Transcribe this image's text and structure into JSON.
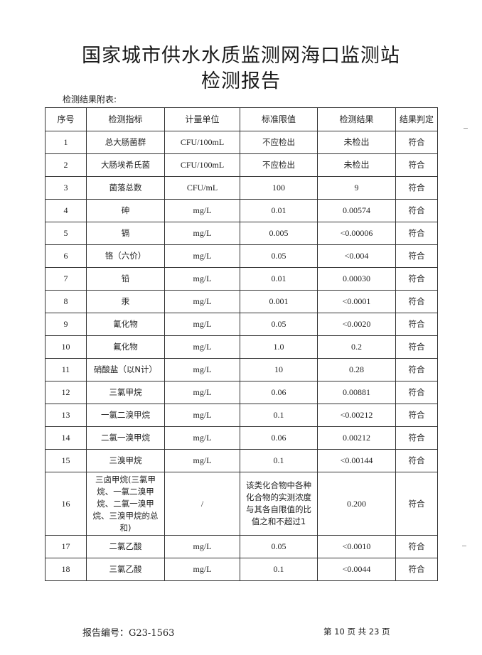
{
  "title_line1": "国家城市供水水质监测网海口监测站",
  "title_line2": "检测报告",
  "subtitle": "检测结果附表:",
  "table": {
    "headers": [
      "序号",
      "检测指标",
      "计量单位",
      "标准限值",
      "检测结果",
      "结果判定"
    ],
    "rows": [
      [
        "1",
        "总大肠菌群",
        "CFU/100mL",
        "不应检出",
        "未检出",
        "符合"
      ],
      [
        "2",
        "大肠埃希氏菌",
        "CFU/100mL",
        "不应检出",
        "未检出",
        "符合"
      ],
      [
        "3",
        "菌落总数",
        "CFU/mL",
        "100",
        "9",
        "符合"
      ],
      [
        "4",
        "砷",
        "mg/L",
        "0.01",
        "0.00574",
        "符合"
      ],
      [
        "5",
        "镉",
        "mg/L",
        "0.005",
        "<0.00006",
        "符合"
      ],
      [
        "6",
        "铬（六价）",
        "mg/L",
        "0.05",
        "<0.004",
        "符合"
      ],
      [
        "7",
        "铅",
        "mg/L",
        "0.01",
        "0.00030",
        "符合"
      ],
      [
        "8",
        "汞",
        "mg/L",
        "0.001",
        "<0.0001",
        "符合"
      ],
      [
        "9",
        "氰化物",
        "mg/L",
        "0.05",
        "<0.0020",
        "符合"
      ],
      [
        "10",
        "氟化物",
        "mg/L",
        "1.0",
        "0.2",
        "符合"
      ],
      [
        "11",
        "硝酸盐（以N计）",
        "mg/L",
        "10",
        "0.28",
        "符合"
      ],
      [
        "12",
        "三氯甲烷",
        "mg/L",
        "0.06",
        "0.00881",
        "符合"
      ],
      [
        "13",
        "一氯二溴甲烷",
        "mg/L",
        "0.1",
        "<0.00212",
        "符合"
      ],
      [
        "14",
        "二氯一溴甲烷",
        "mg/L",
        "0.06",
        "0.00212",
        "符合"
      ],
      [
        "15",
        "三溴甲烷",
        "mg/L",
        "0.1",
        "<0.00144",
        "符合"
      ],
      [
        "16",
        "三卤甲烷(三氯甲烷、一氯二溴甲烷、二氯一溴甲烷、三溴甲烷的总和)",
        "/",
        "该类化合物中各种化合物的实测浓度与其各自限值的比值之和不超过1",
        "0.200",
        "符合"
      ],
      [
        "17",
        "二氯乙酸",
        "mg/L",
        "0.05",
        "<0.0010",
        "符合"
      ],
      [
        "18",
        "三氯乙酸",
        "mg/L",
        "0.1",
        "<0.0044",
        "符合"
      ]
    ]
  },
  "footer": {
    "report_no": "报告编号：G23-1563",
    "page": "第 10 页  共 23 页"
  }
}
